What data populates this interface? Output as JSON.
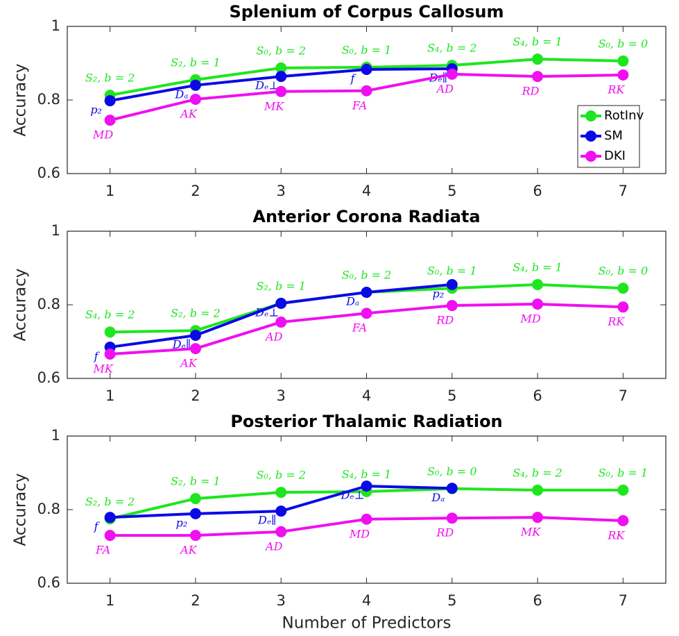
{
  "chart_data": [
    {
      "type": "line",
      "title": "Splenium of Corpus Callosum",
      "ylabel": "Accuracy",
      "x": [
        1,
        2,
        3,
        4,
        5,
        6,
        7
      ],
      "xlim": [
        0.5,
        7.5
      ],
      "xticks": [
        1,
        2,
        3,
        4,
        5,
        6,
        7
      ],
      "ylim": [
        0.6,
        1
      ],
      "yticks": [
        0.6,
        0.8,
        1
      ],
      "grid": false,
      "legend": "east",
      "series": [
        {
          "name": "RotInv",
          "color": "#1ee61e",
          "values": [
            0.813,
            0.855,
            0.887,
            0.889,
            0.894,
            0.911,
            0.906
          ],
          "point_labels": [
            "S₂, b = 2",
            "S₂, b = 1",
            "S₀, b = 2",
            "S₀, b = 1",
            "S₄, b = 2",
            "S₄, b = 1",
            "S₀, b = 0"
          ]
        },
        {
          "name": "SM",
          "color": "#0a0ae6",
          "values": [
            0.798,
            0.84,
            0.864,
            0.883,
            0.885,
            null,
            null
          ],
          "point_labels": [
            "p₂",
            "Dₐ",
            "Dₑ⊥",
            "f",
            "Dₑ∥",
            null,
            null
          ]
        },
        {
          "name": "DKI",
          "color": "#f00ff0",
          "values": [
            0.745,
            0.802,
            0.823,
            0.825,
            0.87,
            0.864,
            0.868
          ],
          "point_labels": [
            "MD",
            "AK",
            "MK",
            "FA",
            "AD",
            "RD",
            "RK"
          ]
        }
      ]
    },
    {
      "type": "line",
      "title": "Anterior Corona Radiata",
      "ylabel": "Accuracy",
      "x": [
        1,
        2,
        3,
        4,
        5,
        6,
        7
      ],
      "xlim": [
        0.5,
        7.5
      ],
      "xticks": [
        1,
        2,
        3,
        4,
        5,
        6,
        7
      ],
      "ylim": [
        0.6,
        1
      ],
      "yticks": [
        0.6,
        0.8,
        1
      ],
      "grid": false,
      "series": [
        {
          "name": "RotInv",
          "color": "#1ee61e",
          "values": [
            0.726,
            0.73,
            0.804,
            0.834,
            0.845,
            0.855,
            0.845
          ],
          "point_labels": [
            "S₄, b = 2",
            "S₂, b = 2",
            "S₂, b = 1",
            "S₀, b = 2",
            "S₀, b = 1",
            "S₄, b = 1",
            "S₀, b = 0"
          ]
        },
        {
          "name": "SM",
          "color": "#0a0ae6",
          "values": [
            0.685,
            0.717,
            0.804,
            0.834,
            0.855,
            null,
            null
          ],
          "point_labels": [
            "f",
            "Dₑ∥",
            "Dₑ⊥",
            "Dₐ",
            "p₂",
            null,
            null
          ]
        },
        {
          "name": "DKI",
          "color": "#f00ff0",
          "values": [
            0.666,
            0.681,
            0.753,
            0.777,
            0.798,
            0.802,
            0.794
          ],
          "point_labels": [
            "MK",
            "AK",
            "AD",
            "FA",
            "RD",
            "MD",
            "RK"
          ]
        }
      ]
    },
    {
      "type": "line",
      "title": "Posterior Thalamic Radiation",
      "ylabel": "Accuracy",
      "xlabel": "Number of Predictors",
      "x": [
        1,
        2,
        3,
        4,
        5,
        6,
        7
      ],
      "xlim": [
        0.5,
        7.5
      ],
      "xticks": [
        1,
        2,
        3,
        4,
        5,
        6,
        7
      ],
      "ylim": [
        0.6,
        1
      ],
      "yticks": [
        0.6,
        0.8,
        1
      ],
      "grid": false,
      "series": [
        {
          "name": "RotInv",
          "color": "#1ee61e",
          "values": [
            0.775,
            0.83,
            0.847,
            0.849,
            0.857,
            0.853,
            0.853
          ],
          "point_labels": [
            "S₂, b = 2",
            "S₂, b = 1",
            "S₀, b = 2",
            "S₄, b = 1",
            "S₀, b = 0",
            "S₄, b = 2",
            "S₀, b = 1"
          ]
        },
        {
          "name": "SM",
          "color": "#0a0ae6",
          "values": [
            0.779,
            0.789,
            0.796,
            0.864,
            0.858,
            null,
            null
          ],
          "point_labels": [
            "f",
            "p₂",
            "Dₑ∥",
            "Dₑ⊥",
            "Dₐ",
            null,
            null
          ]
        },
        {
          "name": "DKI",
          "color": "#f00ff0",
          "values": [
            0.73,
            0.73,
            0.74,
            0.774,
            0.777,
            0.779,
            0.77
          ],
          "point_labels": [
            "FA",
            "AK",
            "AD",
            "MD",
            "RD",
            "MK",
            "RK"
          ]
        }
      ]
    }
  ]
}
